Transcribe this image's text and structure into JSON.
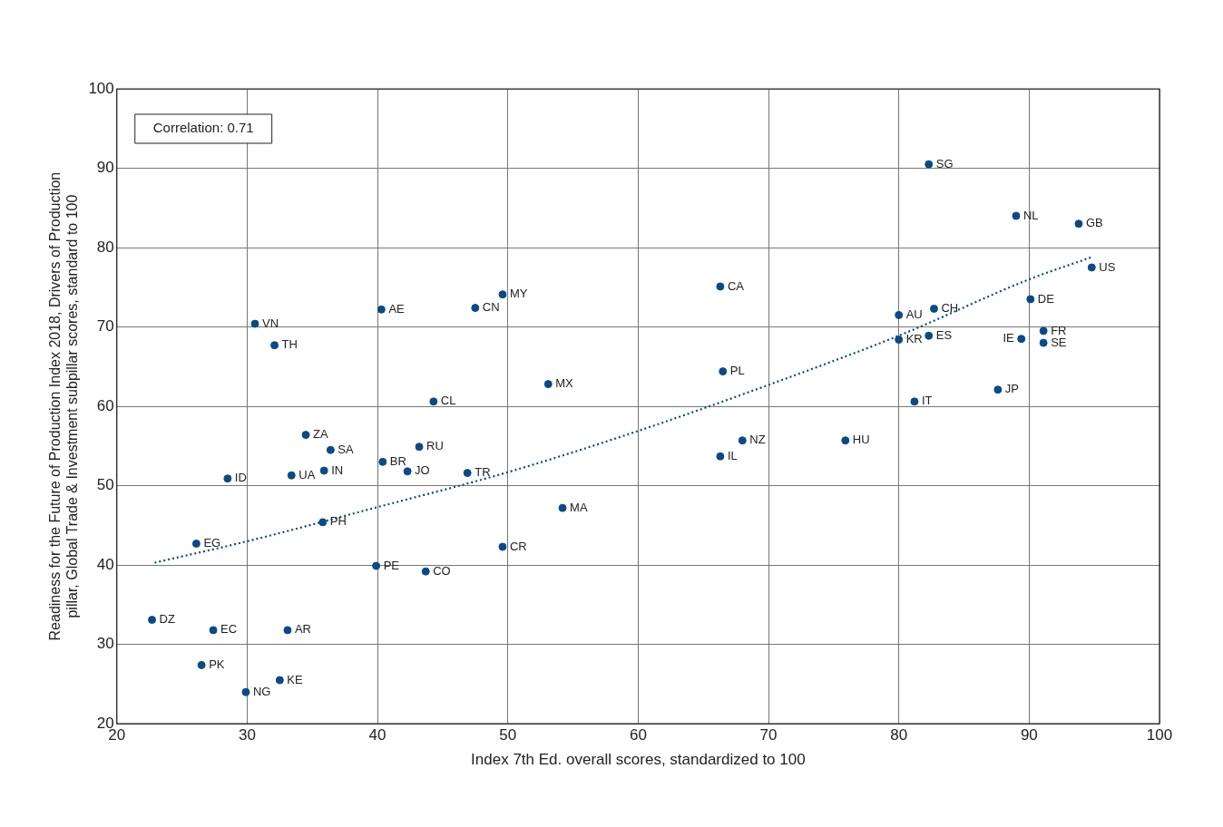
{
  "chart_data": {
    "type": "scatter",
    "xlabel": "Index 7th Ed. overall scores, standardized to 100",
    "ylabel": "Readiness for the Future of Production Index 2018, Drivers of Production pillar, Global Trade & Investment subpillar scores, standard to 100",
    "xlim": [
      20,
      100
    ],
    "xticks": [
      20,
      30,
      40,
      50,
      60,
      70,
      80,
      90,
      100
    ],
    "ylim": [
      20,
      100
    ],
    "yticks": [
      20,
      30,
      40,
      50,
      60,
      70,
      80,
      90,
      100
    ],
    "grid": true,
    "legend": false,
    "marker": "circle",
    "series": [
      {
        "color": "#0b4a84",
        "x": [
          82.3,
          89.0,
          93.8,
          94.8,
          90.1,
          82.7,
          80.0,
          80.0,
          82.3,
          89.4,
          91.1,
          91.1,
          87.6,
          81.2,
          75.9,
          68.0,
          66.3,
          66.5,
          66.3,
          53.1,
          49.6,
          47.5,
          40.3,
          44.3,
          43.2,
          40.4,
          42.3,
          46.9,
          54.2,
          49.6,
          43.7,
          39.9,
          35.8,
          30.6,
          32.1,
          34.5,
          36.4,
          35.9,
          33.4,
          28.5,
          26.1,
          22.7,
          27.4,
          33.1,
          26.5,
          32.5,
          29.9
        ],
        "values": [
          90.5,
          84.0,
          83.0,
          77.5,
          73.5,
          72.3,
          71.5,
          68.4,
          68.9,
          68.5,
          69.5,
          68.0,
          62.1,
          60.6,
          55.7,
          55.7,
          53.7,
          64.4,
          75.1,
          62.8,
          74.1,
          72.4,
          72.2,
          60.6,
          54.9,
          53.0,
          51.8,
          51.6,
          47.2,
          42.3,
          39.2,
          39.9,
          45.4,
          70.4,
          67.7,
          56.4,
          54.5,
          51.9,
          51.3,
          50.9,
          42.7,
          33.1,
          31.8,
          31.8,
          27.4,
          25.5,
          24.0
        ]
      },
      {
        "type": "line",
        "color": "#0b4a84",
        "marker": "none",
        "line_style": "dotted",
        "x": [
          22.9,
          30,
          40,
          50,
          60,
          70,
          80,
          90,
          94.8
        ],
        "values": [
          40.3,
          43.0,
          47.3,
          51.7,
          56.9,
          62.7,
          68.9,
          76.0,
          78.8
        ]
      }
    ],
    "annotations": [
      "Correlation: 0.71",
      {
        "text": "SG",
        "x": 82.3,
        "y": 90.5
      },
      {
        "text": "NL",
        "x": 89.0,
        "y": 84.0
      },
      {
        "text": "GB",
        "x": 93.8,
        "y": 83.0
      },
      {
        "text": "US",
        "x": 94.8,
        "y": 77.5
      },
      {
        "text": "DE",
        "x": 90.1,
        "y": 73.5
      },
      {
        "text": "CH",
        "x": 82.7,
        "y": 72.3
      },
      {
        "text": "AU",
        "x": 80.0,
        "y": 71.5
      },
      {
        "text": "KR",
        "x": 80.0,
        "y": 68.4
      },
      {
        "text": "ES",
        "x": 82.3,
        "y": 68.9
      },
      {
        "text": "IE",
        "x": 89.4,
        "y": 68.5
      },
      {
        "text": "FR",
        "x": 91.1,
        "y": 69.5
      },
      {
        "text": "SE",
        "x": 91.1,
        "y": 68.0
      },
      {
        "text": "JP",
        "x": 87.6,
        "y": 62.1
      },
      {
        "text": "IT",
        "x": 81.2,
        "y": 60.6
      },
      {
        "text": "HU",
        "x": 75.9,
        "y": 55.7
      },
      {
        "text": "NZ",
        "x": 68.0,
        "y": 55.7
      },
      {
        "text": "IL",
        "x": 66.3,
        "y": 53.7
      },
      {
        "text": "PL",
        "x": 66.5,
        "y": 64.4
      },
      {
        "text": "CA",
        "x": 66.3,
        "y": 75.1
      },
      {
        "text": "MX",
        "x": 53.1,
        "y": 62.8
      },
      {
        "text": "MY",
        "x": 49.6,
        "y": 74.1
      },
      {
        "text": "CN",
        "x": 47.5,
        "y": 72.4
      },
      {
        "text": "AE",
        "x": 40.3,
        "y": 72.2
      },
      {
        "text": "CL",
        "x": 44.3,
        "y": 60.6
      },
      {
        "text": "RU",
        "x": 43.2,
        "y": 54.9
      },
      {
        "text": "BR",
        "x": 40.4,
        "y": 53.0
      },
      {
        "text": "JO",
        "x": 42.3,
        "y": 51.8
      },
      {
        "text": "TR",
        "x": 46.9,
        "y": 51.6
      },
      {
        "text": "MA",
        "x": 54.2,
        "y": 47.2
      },
      {
        "text": "CR",
        "x": 49.6,
        "y": 42.3
      },
      {
        "text": "CO",
        "x": 43.7,
        "y": 39.2
      },
      {
        "text": "PE",
        "x": 39.9,
        "y": 39.9
      },
      {
        "text": "PH",
        "x": 35.8,
        "y": 45.4
      },
      {
        "text": "VN",
        "x": 30.6,
        "y": 70.4
      },
      {
        "text": "TH",
        "x": 32.1,
        "y": 67.7
      },
      {
        "text": "ZA",
        "x": 34.5,
        "y": 56.4
      },
      {
        "text": "SA",
        "x": 36.4,
        "y": 54.5
      },
      {
        "text": "IN",
        "x": 35.9,
        "y": 51.9
      },
      {
        "text": "UA",
        "x": 33.4,
        "y": 51.3
      },
      {
        "text": "ID",
        "x": 28.5,
        "y": 50.9
      },
      {
        "text": "EG",
        "x": 26.1,
        "y": 42.7
      },
      {
        "text": "DZ",
        "x": 22.7,
        "y": 33.1
      },
      {
        "text": "EC",
        "x": 27.4,
        "y": 31.8
      },
      {
        "text": "AR",
        "x": 33.1,
        "y": 31.8
      },
      {
        "text": "PK",
        "x": 26.5,
        "y": 27.4
      },
      {
        "text": "KE",
        "x": 32.5,
        "y": 25.5
      },
      {
        "text": "NG",
        "x": 29.9,
        "y": 24.0
      }
    ]
  }
}
